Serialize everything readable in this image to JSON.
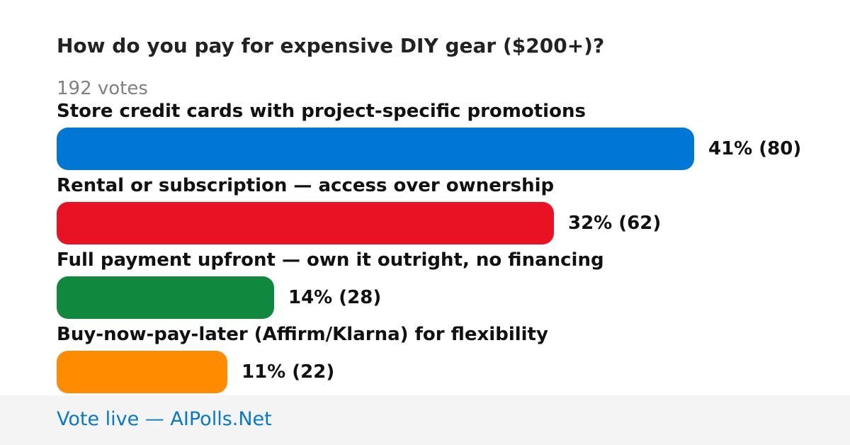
{
  "chart_data": {
    "type": "bar",
    "orientation": "horizontal",
    "title": "How do you pay for expensive DIY gear ($200+)?",
    "subtitle": "192 votes",
    "categories": [
      "Store credit cards with project-specific promotions",
      "Rental or subscription — access over ownership",
      "Full payment upfront — own it outright, no financing",
      "Buy-now-pay-later (Affirm/Klarna) for flexibility"
    ],
    "percent": [
      41,
      32,
      14,
      11
    ],
    "counts": [
      80,
      62,
      28,
      22
    ],
    "value_labels": [
      "41% (80)",
      "32% (62)",
      "14% (28)",
      "11% (22)"
    ],
    "colors": [
      "#0077d4",
      "#e81224",
      "#10893e",
      "#ff8c00"
    ],
    "grid": false,
    "legend": "none"
  },
  "footer": {
    "link_text": "Vote live — AIPolls.Net"
  }
}
